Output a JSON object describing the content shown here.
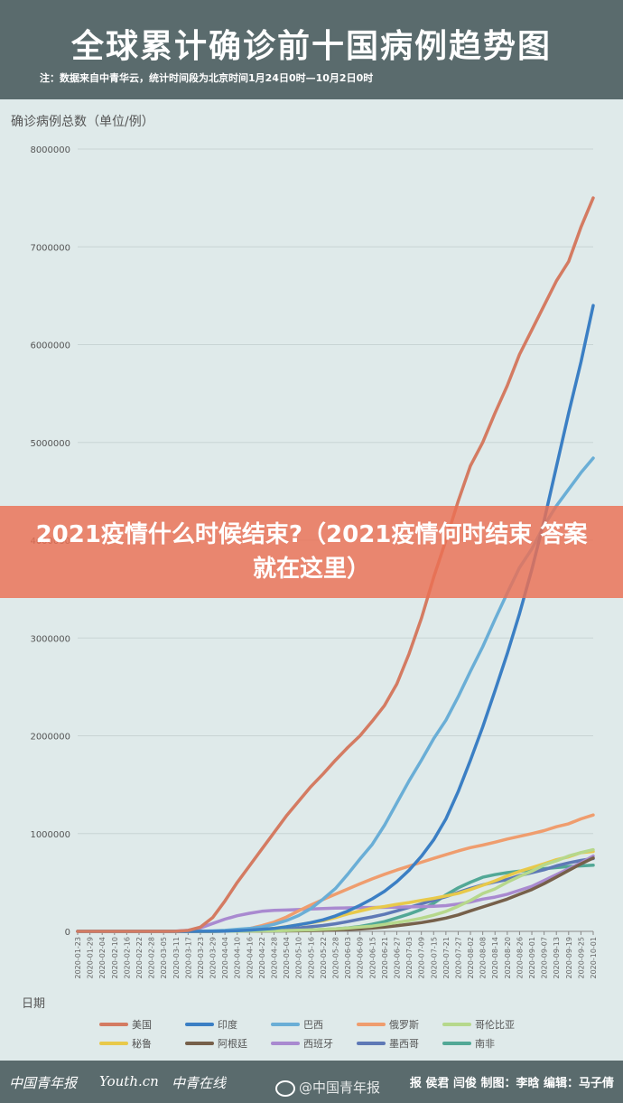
{
  "header": {
    "title": "全球累计确诊前十国病例趋势图",
    "note": "注：数据来自中青华云，统计时间段为北京时间1月24日0时—10月2日0时"
  },
  "banner": {
    "text": "2021疫情什么时候结束?（2021疫情何时结束 答案就在这里）"
  },
  "footer": {
    "logo1": "中国青年报",
    "logo2": "Youth.cn",
    "logo3": "中青在线",
    "credit": "报 侯君 闫俊 制图：李晗 编辑：马子倩",
    "watermark": "@中国青年报"
  },
  "colors": {
    "header_bg": "#5a6b6d",
    "banner": "#ec7054"
  },
  "chart_data": {
    "type": "line",
    "ylabel": "确诊病例总数（单位/例）",
    "xlabel": "日期",
    "ylim": [
      0,
      8000000
    ],
    "yticks": [
      "0",
      "1000000",
      "2000000",
      "3000000",
      "4000000",
      "5000000",
      "6000000",
      "7000000",
      "8000000"
    ],
    "x": [
      "2020-01-23",
      "2020-01-29",
      "2020-02-04",
      "2020-02-10",
      "2020-02-16",
      "2020-02-22",
      "2020-02-28",
      "2020-03-05",
      "2020-03-11",
      "2020-03-17",
      "2020-03-23",
      "2020-03-29",
      "2020-04-04",
      "2020-04-10",
      "2020-04-16",
      "2020-04-22",
      "2020-04-28",
      "2020-05-04",
      "2020-05-10",
      "2020-05-16",
      "2020-05-22",
      "2020-05-28",
      "2020-06-03",
      "2020-06-09",
      "2020-06-15",
      "2020-06-21",
      "2020-06-27",
      "2020-07-03",
      "2020-07-09",
      "2020-07-15",
      "2020-07-21",
      "2020-07-27",
      "2020-08-02",
      "2020-08-08",
      "2020-08-14",
      "2020-08-20",
      "2020-08-26",
      "2020-09-01",
      "2020-09-07",
      "2020-09-13",
      "2020-09-19",
      "2020-09-25",
      "2020-10-01"
    ],
    "legend_position": "bottom",
    "series": [
      {
        "name": "美国",
        "color": "#d47b62",
        "values": [
          0,
          0,
          0,
          0,
          0,
          0,
          0,
          0,
          1000,
          9000,
          43000,
          140000,
          310000,
          500000,
          670000,
          840000,
          1010000,
          1180000,
          1330000,
          1480000,
          1610000,
          1750000,
          1880000,
          2000000,
          2150000,
          2310000,
          2530000,
          2840000,
          3200000,
          3620000,
          4000000,
          4400000,
          4760000,
          5000000,
          5300000,
          5580000,
          5900000,
          6150000,
          6400000,
          6650000,
          6850000,
          7200000,
          7500000
        ]
      },
      {
        "name": "印度",
        "color": "#3b7fc4",
        "values": [
          0,
          0,
          0,
          0,
          0,
          0,
          0,
          0,
          0,
          0,
          0,
          1000,
          3000,
          7000,
          13000,
          20000,
          30000,
          46000,
          67000,
          90000,
          118000,
          158000,
          207000,
          266000,
          333000,
          410000,
          508000,
          625000,
          768000,
          936000,
          1150000,
          1430000,
          1750000,
          2090000,
          2460000,
          2840000,
          3250000,
          3700000,
          4200000,
          4750000,
          5300000,
          5820000,
          6400000
        ]
      },
      {
        "name": "巴西",
        "color": "#6aaed6",
        "values": [
          0,
          0,
          0,
          0,
          0,
          0,
          0,
          0,
          0,
          0,
          2000,
          5000,
          10000,
          20000,
          30000,
          45000,
          72000,
          110000,
          162000,
          233000,
          331000,
          438000,
          584000,
          740000,
          890000,
          1085000,
          1313000,
          1540000,
          1750000,
          1970000,
          2160000,
          2400000,
          2660000,
          2910000,
          3190000,
          3460000,
          3720000,
          3910000,
          4150000,
          4350000,
          4520000,
          4690000,
          4840000
        ]
      },
      {
        "name": "俄罗斯",
        "color": "#ef9d6e",
        "values": [
          0,
          0,
          0,
          0,
          0,
          0,
          0,
          0,
          0,
          100,
          500,
          1500,
          5000,
          12000,
          28000,
          58000,
          94000,
          146000,
          210000,
          270000,
          326000,
          380000,
          433000,
          486000,
          537000,
          584000,
          627000,
          667000,
          707000,
          746000,
          784000,
          822000,
          856000,
          882000,
          912000,
          944000,
          972000,
          1000000,
          1030000,
          1070000,
          1100000,
          1150000,
          1190000
        ]
      },
      {
        "name": "哥伦比亚",
        "color": "#b6d88c",
        "values": [
          0,
          0,
          0,
          0,
          0,
          0,
          0,
          0,
          0,
          0,
          0,
          800,
          1500,
          2700,
          3600,
          4200,
          5900,
          8000,
          11000,
          15000,
          20000,
          26000,
          33000,
          43000,
          54000,
          71000,
          91000,
          110000,
          134000,
          165000,
          204000,
          257000,
          316000,
          387000,
          434000,
          503000,
          562000,
          615000,
          680000,
          721000,
          770000,
          806000,
          835000
        ]
      },
      {
        "name": "秘鲁",
        "color": "#e8c94a",
        "values": [
          0,
          0,
          0,
          0,
          0,
          0,
          0,
          0,
          0,
          100,
          400,
          1000,
          1500,
          5000,
          12000,
          20000,
          31000,
          47000,
          67000,
          88000,
          111000,
          141000,
          178000,
          208000,
          237000,
          254000,
          276000,
          295000,
          317000,
          337000,
          362000,
          389000,
          428000,
          471000,
          516000,
          567000,
          613000,
          652000,
          691000,
          733000,
          762000,
          805000,
          818000
        ]
      },
      {
        "name": "阿根廷",
        "color": "#76604a",
        "values": [
          0,
          0,
          0,
          0,
          0,
          0,
          0,
          0,
          0,
          0,
          300,
          800,
          1500,
          2000,
          2500,
          3200,
          4300,
          5000,
          6000,
          8000,
          10000,
          14000,
          19000,
          24000,
          33000,
          44000,
          57000,
          73000,
          90000,
          111000,
          136000,
          168000,
          210000,
          249000,
          289000,
          330000,
          380000,
          428000,
          488000,
          555000,
          623000,
          690000,
          750000
        ]
      },
      {
        "name": "西班牙",
        "color": "#a98ad0",
        "values": [
          0,
          0,
          0,
          0,
          0,
          0,
          0,
          0,
          2000,
          10000,
          35000,
          80000,
          125000,
          160000,
          185000,
          205000,
          215000,
          218000,
          223000,
          228000,
          233000,
          237000,
          240000,
          242000,
          244000,
          246000,
          248000,
          250000,
          253000,
          257000,
          263000,
          280000,
          300000,
          330000,
          350000,
          380000,
          420000,
          460000,
          520000,
          580000,
          640000,
          700000,
          770000
        ]
      },
      {
        "name": "墨西哥",
        "color": "#5e79b6",
        "values": [
          0,
          0,
          0,
          0,
          0,
          0,
          0,
          0,
          0,
          0,
          300,
          1000,
          2000,
          3500,
          6000,
          10000,
          15000,
          25000,
          35000,
          47000,
          60000,
          78000,
          100000,
          125000,
          148000,
          175000,
          210000,
          245000,
          282000,
          318000,
          355000,
          398000,
          440000,
          475000,
          505000,
          530000,
          570000,
          600000,
          630000,
          670000,
          700000,
          725000,
          745000
        ]
      },
      {
        "name": "南非",
        "color": "#52a896",
        "values": [
          0,
          0,
          0,
          0,
          0,
          0,
          0,
          0,
          0,
          0,
          400,
          1200,
          1700,
          2000,
          2800,
          3500,
          4800,
          7000,
          10000,
          14000,
          19000,
          25000,
          35000,
          50000,
          73000,
          100000,
          138000,
          177000,
          224000,
          287000,
          373000,
          445000,
          503000,
          553000,
          580000,
          600000,
          615000,
          628000,
          641000,
          652000,
          662000,
          670000,
          676000
        ]
      }
    ]
  }
}
